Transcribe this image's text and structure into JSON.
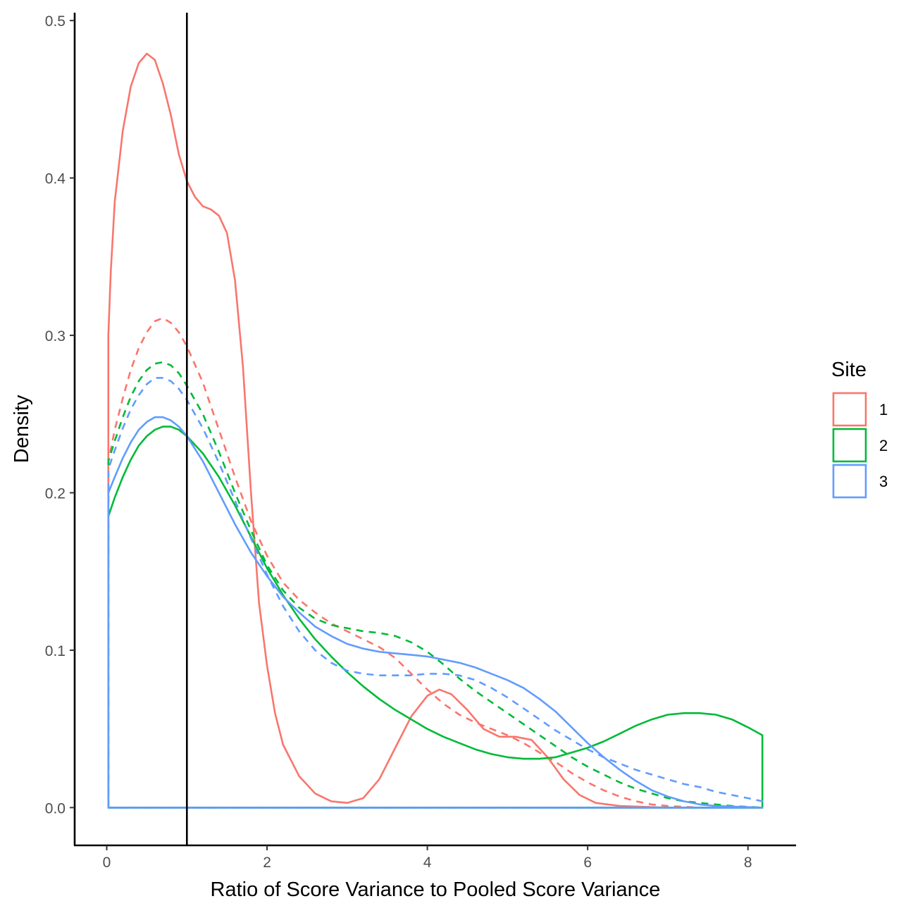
{
  "chart_data": {
    "type": "line",
    "xlabel": "Ratio of Score Variance to Pooled Score Variance",
    "ylabel": "Density",
    "xlim": [
      -0.4,
      8.6
    ],
    "ylim": [
      -0.024,
      0.505
    ],
    "x_ticks": [
      0,
      2,
      4,
      6,
      8
    ],
    "x_tick_labels": [
      "0",
      "2",
      "4",
      "6",
      "8"
    ],
    "y_ticks": [
      0.0,
      0.1,
      0.2,
      0.3,
      0.4,
      0.5
    ],
    "y_tick_labels": [
      "0.0",
      "0.1",
      "0.2",
      "0.3",
      "0.4",
      "0.5"
    ],
    "grid": false,
    "vline": {
      "x": 1.0,
      "color": "#000000"
    },
    "legend": {
      "title": "Site",
      "placement": "right",
      "entries": [
        {
          "label": "1",
          "color": "#F8766D"
        },
        {
          "label": "2",
          "color": "#00BA38"
        },
        {
          "label": "3",
          "color": "#619CFF"
        }
      ]
    },
    "series": [
      {
        "color": "#F8766D",
        "dash": false,
        "closed": true,
        "points": [
          [
            0.02,
            0.0
          ],
          [
            0.02,
            0.3
          ],
          [
            0.05,
            0.34
          ],
          [
            0.1,
            0.385
          ],
          [
            0.2,
            0.43
          ],
          [
            0.3,
            0.458
          ],
          [
            0.4,
            0.473
          ],
          [
            0.5,
            0.479
          ],
          [
            0.6,
            0.475
          ],
          [
            0.7,
            0.46
          ],
          [
            0.8,
            0.44
          ],
          [
            0.9,
            0.415
          ],
          [
            1.0,
            0.398
          ],
          [
            1.1,
            0.388
          ],
          [
            1.2,
            0.382
          ],
          [
            1.3,
            0.38
          ],
          [
            1.4,
            0.376
          ],
          [
            1.5,
            0.365
          ],
          [
            1.6,
            0.335
          ],
          [
            1.7,
            0.28
          ],
          [
            1.8,
            0.2
          ],
          [
            1.9,
            0.13
          ],
          [
            2.0,
            0.09
          ],
          [
            2.1,
            0.06
          ],
          [
            2.2,
            0.04
          ],
          [
            2.4,
            0.02
          ],
          [
            2.6,
            0.009
          ],
          [
            2.8,
            0.004
          ],
          [
            3.0,
            0.003
          ],
          [
            3.2,
            0.006
          ],
          [
            3.4,
            0.018
          ],
          [
            3.6,
            0.038
          ],
          [
            3.8,
            0.058
          ],
          [
            4.0,
            0.071
          ],
          [
            4.15,
            0.075
          ],
          [
            4.3,
            0.072
          ],
          [
            4.5,
            0.062
          ],
          [
            4.7,
            0.05
          ],
          [
            4.9,
            0.045
          ],
          [
            5.1,
            0.045
          ],
          [
            5.3,
            0.043
          ],
          [
            5.5,
            0.032
          ],
          [
            5.7,
            0.018
          ],
          [
            5.9,
            0.008
          ],
          [
            6.1,
            0.003
          ],
          [
            6.4,
            0.001
          ],
          [
            7.0,
            0.0
          ],
          [
            8.18,
            0.0
          ]
        ]
      },
      {
        "color": "#F8766D",
        "dash": true,
        "closed": true,
        "points": [
          [
            0.02,
            0.0
          ],
          [
            0.02,
            0.22
          ],
          [
            0.1,
            0.24
          ],
          [
            0.2,
            0.26
          ],
          [
            0.3,
            0.278
          ],
          [
            0.4,
            0.292
          ],
          [
            0.5,
            0.302
          ],
          [
            0.6,
            0.309
          ],
          [
            0.7,
            0.311
          ],
          [
            0.8,
            0.308
          ],
          [
            0.9,
            0.302
          ],
          [
            1.0,
            0.293
          ],
          [
            1.2,
            0.27
          ],
          [
            1.4,
            0.24
          ],
          [
            1.6,
            0.21
          ],
          [
            1.8,
            0.182
          ],
          [
            2.0,
            0.16
          ],
          [
            2.2,
            0.143
          ],
          [
            2.4,
            0.132
          ],
          [
            2.6,
            0.124
          ],
          [
            2.8,
            0.117
          ],
          [
            3.0,
            0.112
          ],
          [
            3.2,
            0.107
          ],
          [
            3.4,
            0.102
          ],
          [
            3.6,
            0.095
          ],
          [
            3.8,
            0.085
          ],
          [
            4.0,
            0.075
          ],
          [
            4.2,
            0.066
          ],
          [
            4.4,
            0.059
          ],
          [
            4.6,
            0.054
          ],
          [
            4.8,
            0.05
          ],
          [
            5.0,
            0.046
          ],
          [
            5.2,
            0.041
          ],
          [
            5.4,
            0.035
          ],
          [
            5.6,
            0.029
          ],
          [
            5.8,
            0.022
          ],
          [
            6.0,
            0.016
          ],
          [
            6.2,
            0.011
          ],
          [
            6.4,
            0.007
          ],
          [
            6.6,
            0.004
          ],
          [
            6.8,
            0.002
          ],
          [
            7.0,
            0.001
          ],
          [
            7.4,
            0.0
          ],
          [
            8.18,
            0.0
          ]
        ]
      },
      {
        "color": "#00BA38",
        "dash": false,
        "closed": true,
        "points": [
          [
            0.02,
            0.0
          ],
          [
            0.02,
            0.185
          ],
          [
            0.1,
            0.197
          ],
          [
            0.2,
            0.21
          ],
          [
            0.3,
            0.221
          ],
          [
            0.4,
            0.23
          ],
          [
            0.5,
            0.236
          ],
          [
            0.6,
            0.24
          ],
          [
            0.7,
            0.242
          ],
          [
            0.8,
            0.242
          ],
          [
            0.9,
            0.24
          ],
          [
            1.0,
            0.236
          ],
          [
            1.2,
            0.225
          ],
          [
            1.4,
            0.21
          ],
          [
            1.6,
            0.192
          ],
          [
            1.8,
            0.172
          ],
          [
            2.0,
            0.152
          ],
          [
            2.2,
            0.135
          ],
          [
            2.4,
            0.12
          ],
          [
            2.6,
            0.107
          ],
          [
            2.8,
            0.096
          ],
          [
            3.0,
            0.086
          ],
          [
            3.2,
            0.077
          ],
          [
            3.4,
            0.069
          ],
          [
            3.6,
            0.062
          ],
          [
            3.8,
            0.056
          ],
          [
            4.0,
            0.05
          ],
          [
            4.2,
            0.045
          ],
          [
            4.4,
            0.041
          ],
          [
            4.6,
            0.037
          ],
          [
            4.8,
            0.034
          ],
          [
            5.0,
            0.032
          ],
          [
            5.2,
            0.031
          ],
          [
            5.4,
            0.031
          ],
          [
            5.6,
            0.032
          ],
          [
            5.8,
            0.035
          ],
          [
            6.0,
            0.038
          ],
          [
            6.2,
            0.042
          ],
          [
            6.4,
            0.047
          ],
          [
            6.6,
            0.052
          ],
          [
            6.8,
            0.056
          ],
          [
            7.0,
            0.059
          ],
          [
            7.2,
            0.06
          ],
          [
            7.4,
            0.06
          ],
          [
            7.6,
            0.059
          ],
          [
            7.8,
            0.056
          ],
          [
            8.0,
            0.051
          ],
          [
            8.18,
            0.046
          ],
          [
            8.18,
            0.0
          ]
        ]
      },
      {
        "color": "#00BA38",
        "dash": true,
        "closed": true,
        "points": [
          [
            0.02,
            0.0
          ],
          [
            0.02,
            0.22
          ],
          [
            0.1,
            0.233
          ],
          [
            0.2,
            0.248
          ],
          [
            0.3,
            0.261
          ],
          [
            0.4,
            0.271
          ],
          [
            0.5,
            0.278
          ],
          [
            0.6,
            0.282
          ],
          [
            0.7,
            0.283
          ],
          [
            0.8,
            0.281
          ],
          [
            0.9,
            0.276
          ],
          [
            1.0,
            0.268
          ],
          [
            1.2,
            0.25
          ],
          [
            1.4,
            0.226
          ],
          [
            1.6,
            0.2
          ],
          [
            1.8,
            0.176
          ],
          [
            2.0,
            0.154
          ],
          [
            2.2,
            0.138
          ],
          [
            2.4,
            0.127
          ],
          [
            2.6,
            0.12
          ],
          [
            2.8,
            0.116
          ],
          [
            3.0,
            0.114
          ],
          [
            3.2,
            0.112
          ],
          [
            3.4,
            0.111
          ],
          [
            3.6,
            0.109
          ],
          [
            3.8,
            0.105
          ],
          [
            4.0,
            0.099
          ],
          [
            4.2,
            0.091
          ],
          [
            4.4,
            0.082
          ],
          [
            4.6,
            0.074
          ],
          [
            4.8,
            0.067
          ],
          [
            5.0,
            0.06
          ],
          [
            5.2,
            0.053
          ],
          [
            5.4,
            0.046
          ],
          [
            5.6,
            0.039
          ],
          [
            5.8,
            0.032
          ],
          [
            6.0,
            0.026
          ],
          [
            6.2,
            0.021
          ],
          [
            6.4,
            0.016
          ],
          [
            6.6,
            0.012
          ],
          [
            6.8,
            0.009
          ],
          [
            7.0,
            0.006
          ],
          [
            7.2,
            0.004
          ],
          [
            7.4,
            0.003
          ],
          [
            7.6,
            0.002
          ],
          [
            7.8,
            0.001
          ],
          [
            8.18,
            0.0
          ]
        ]
      },
      {
        "color": "#619CFF",
        "dash": false,
        "closed": true,
        "points": [
          [
            0.02,
            0.0
          ],
          [
            0.02,
            0.2
          ],
          [
            0.1,
            0.21
          ],
          [
            0.2,
            0.222
          ],
          [
            0.3,
            0.232
          ],
          [
            0.4,
            0.24
          ],
          [
            0.5,
            0.245
          ],
          [
            0.6,
            0.248
          ],
          [
            0.7,
            0.248
          ],
          [
            0.8,
            0.246
          ],
          [
            0.9,
            0.242
          ],
          [
            1.0,
            0.236
          ],
          [
            1.2,
            0.22
          ],
          [
            1.4,
            0.2
          ],
          [
            1.6,
            0.18
          ],
          [
            1.8,
            0.162
          ],
          [
            2.0,
            0.147
          ],
          [
            2.2,
            0.134
          ],
          [
            2.4,
            0.124
          ],
          [
            2.6,
            0.115
          ],
          [
            2.8,
            0.109
          ],
          [
            3.0,
            0.104
          ],
          [
            3.2,
            0.101
          ],
          [
            3.4,
            0.099
          ],
          [
            3.6,
            0.098
          ],
          [
            3.8,
            0.097
          ],
          [
            4.0,
            0.096
          ],
          [
            4.2,
            0.094
          ],
          [
            4.4,
            0.092
          ],
          [
            4.6,
            0.089
          ],
          [
            4.8,
            0.085
          ],
          [
            5.0,
            0.081
          ],
          [
            5.2,
            0.076
          ],
          [
            5.4,
            0.069
          ],
          [
            5.6,
            0.061
          ],
          [
            5.8,
            0.051
          ],
          [
            6.0,
            0.041
          ],
          [
            6.2,
            0.032
          ],
          [
            6.4,
            0.024
          ],
          [
            6.6,
            0.017
          ],
          [
            6.8,
            0.011
          ],
          [
            7.0,
            0.007
          ],
          [
            7.2,
            0.004
          ],
          [
            7.4,
            0.002
          ],
          [
            7.6,
            0.001
          ],
          [
            8.18,
            0.0
          ]
        ]
      },
      {
        "color": "#619CFF",
        "dash": true,
        "closed": true,
        "points": [
          [
            0.02,
            0.0
          ],
          [
            0.02,
            0.215
          ],
          [
            0.1,
            0.227
          ],
          [
            0.2,
            0.241
          ],
          [
            0.3,
            0.253
          ],
          [
            0.4,
            0.262
          ],
          [
            0.5,
            0.269
          ],
          [
            0.6,
            0.273
          ],
          [
            0.7,
            0.273
          ],
          [
            0.8,
            0.271
          ],
          [
            0.9,
            0.266
          ],
          [
            1.0,
            0.259
          ],
          [
            1.2,
            0.241
          ],
          [
            1.4,
            0.219
          ],
          [
            1.6,
            0.195
          ],
          [
            1.8,
            0.171
          ],
          [
            2.0,
            0.148
          ],
          [
            2.2,
            0.128
          ],
          [
            2.4,
            0.112
          ],
          [
            2.6,
            0.1
          ],
          [
            2.8,
            0.092
          ],
          [
            3.0,
            0.087
          ],
          [
            3.2,
            0.085
          ],
          [
            3.4,
            0.084
          ],
          [
            3.6,
            0.084
          ],
          [
            3.8,
            0.084
          ],
          [
            4.0,
            0.085
          ],
          [
            4.2,
            0.085
          ],
          [
            4.4,
            0.084
          ],
          [
            4.6,
            0.081
          ],
          [
            4.8,
            0.076
          ],
          [
            5.0,
            0.07
          ],
          [
            5.2,
            0.063
          ],
          [
            5.4,
            0.056
          ],
          [
            5.6,
            0.049
          ],
          [
            5.8,
            0.043
          ],
          [
            6.0,
            0.037
          ],
          [
            6.2,
            0.032
          ],
          [
            6.4,
            0.028
          ],
          [
            6.6,
            0.024
          ],
          [
            6.8,
            0.021
          ],
          [
            7.0,
            0.018
          ],
          [
            7.2,
            0.015
          ],
          [
            7.4,
            0.013
          ],
          [
            7.6,
            0.01
          ],
          [
            7.8,
            0.008
          ],
          [
            8.0,
            0.006
          ],
          [
            8.18,
            0.004
          ],
          [
            8.18,
            0.0
          ]
        ]
      }
    ]
  }
}
